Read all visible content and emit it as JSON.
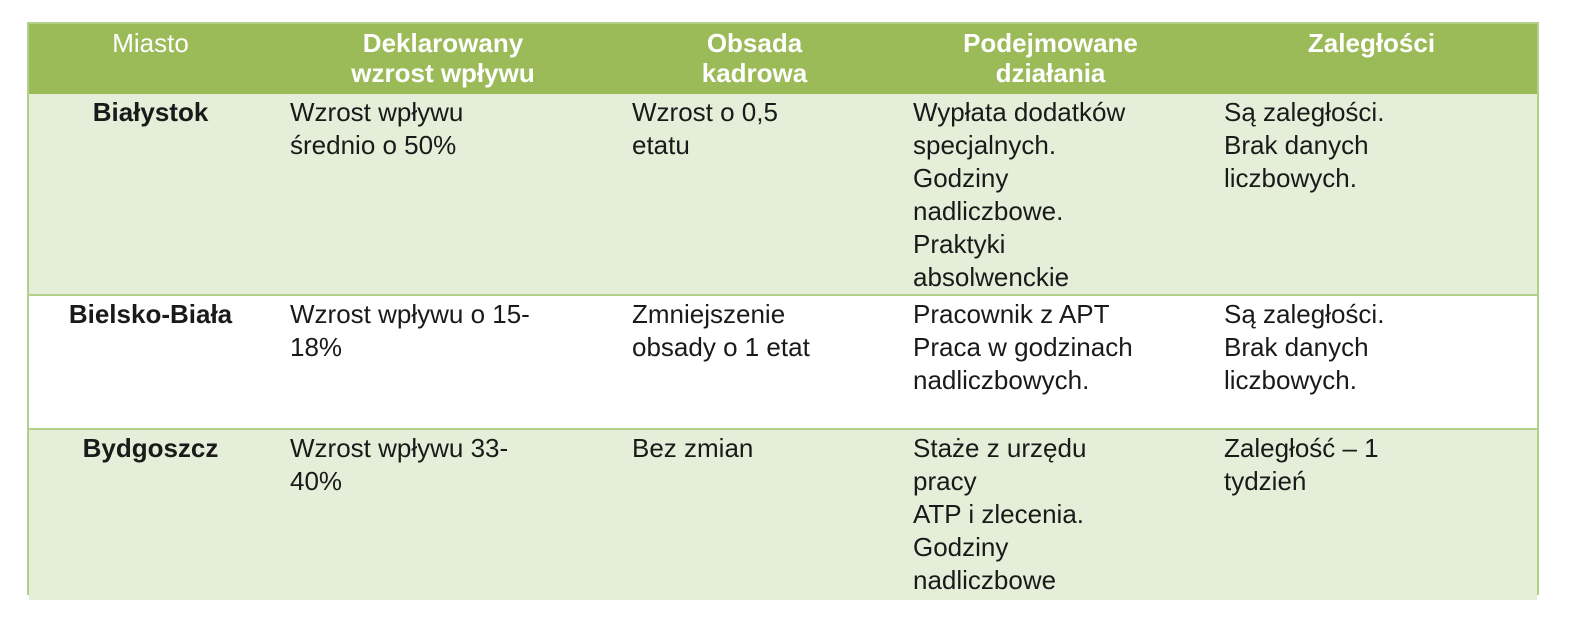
{
  "table": {
    "headers": [
      "Miasto",
      "Deklarowany\nwzrost wpływu",
      "Obsada\nkadrowa",
      "Podejmowane\ndziałania",
      "Zaległości"
    ],
    "rows": [
      {
        "city": "Białystok",
        "growth": "Wzrost wpływu\nśrednio o 50%",
        "staff": "Wzrost o 0,5\netatu",
        "actions": "Wypłata dodatków\nspecjalnych.\nGodziny\nnadliczbowe.\nPraktyki\nabsolwenckie",
        "backlog": "Są zaległości.\nBrak danych\nliczbowych."
      },
      {
        "city": "Bielsko-Biała",
        "growth": "Wzrost wpływu o 15-\n18%",
        "staff": "Zmniejszenie\nobsady o 1 etat",
        "actions": "Pracownik z APT\nPraca w godzinach\nnadliczbowych.",
        "backlog": "Są zaległości.\nBrak danych\nliczbowych."
      },
      {
        "city": "Bydgoszcz",
        "growth": "Wzrost wpływu 33-\n40%",
        "staff": "Bez zmian",
        "actions": "Staże z urzędu\npracy\nATP i zlecenia.\nGodziny\nnadliczbowe",
        "backlog": "Zaległość – 1\ntydzień"
      }
    ]
  },
  "colors": {
    "header_bg": "#9bbb59",
    "row_band": "#e5eed8",
    "border": "#b3d08a"
  }
}
